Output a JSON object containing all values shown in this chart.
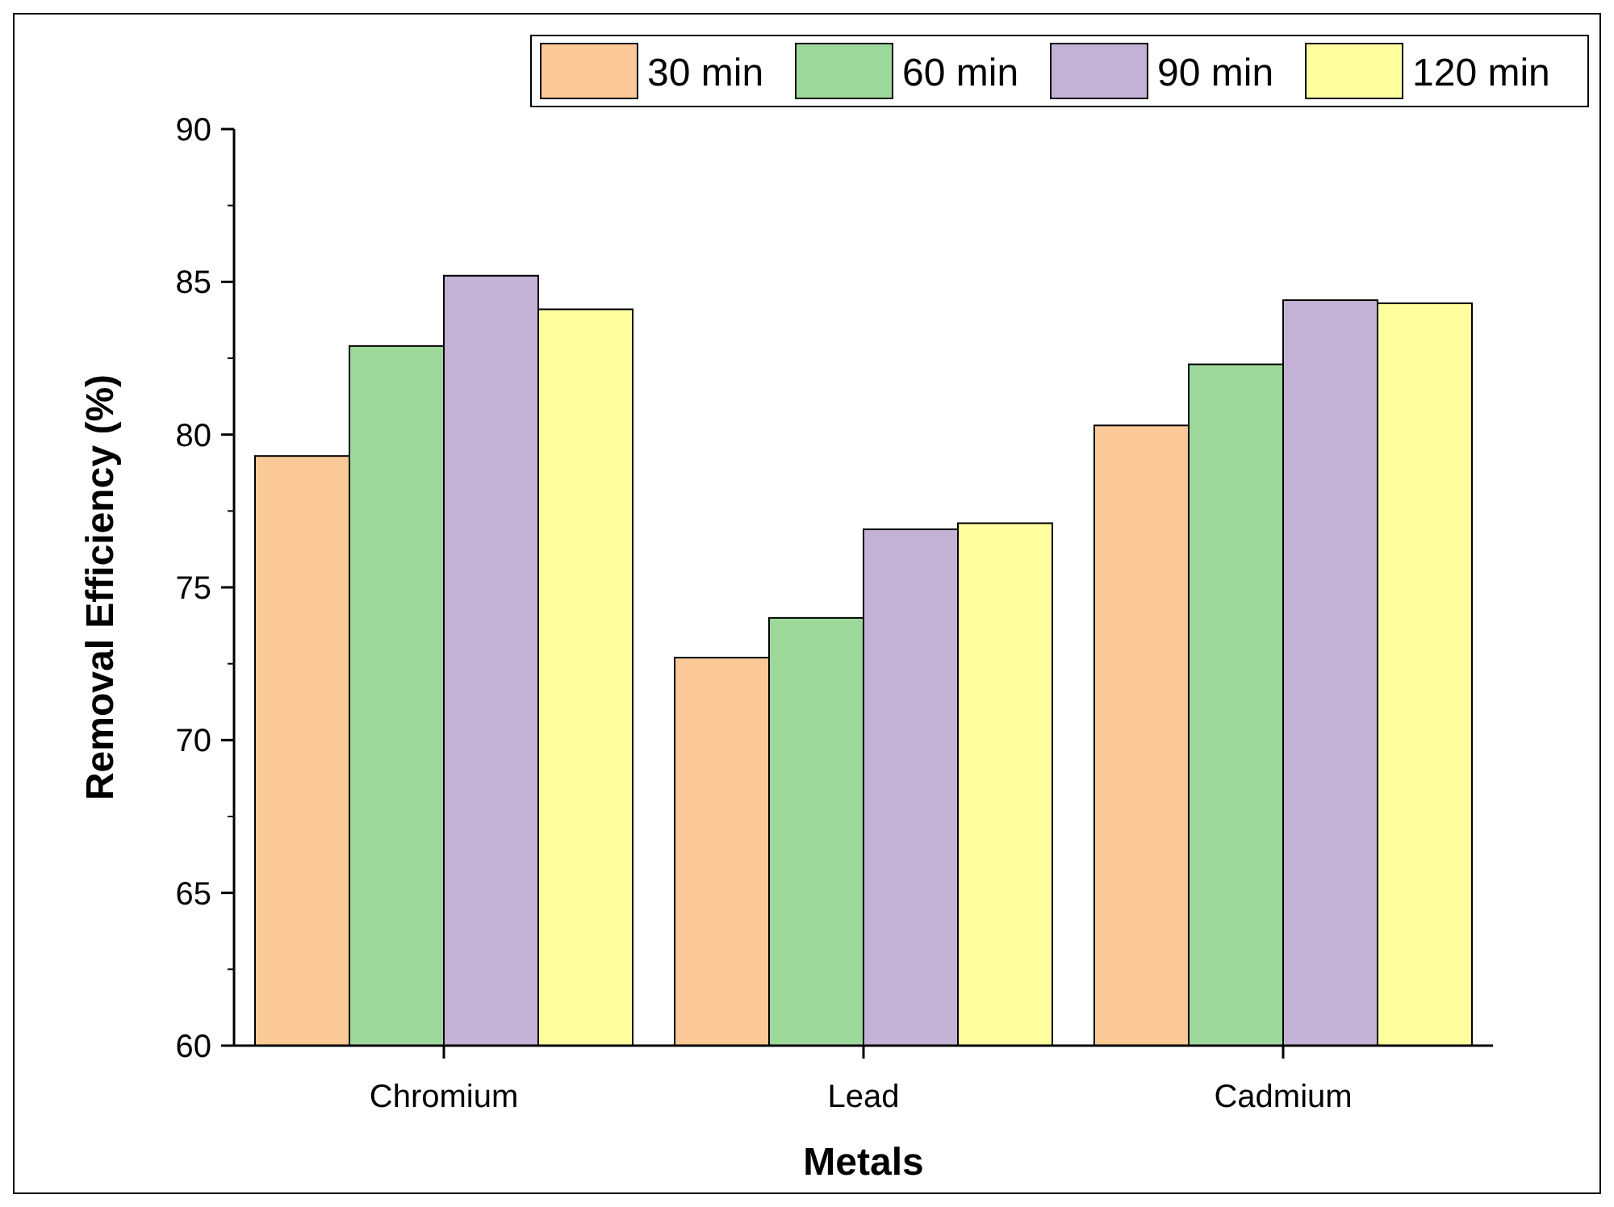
{
  "chart_data": {
    "type": "bar",
    "xlabel": "Metals",
    "ylabel": "Removal Efficiency (%)",
    "categories": [
      "Chromium",
      "Lead",
      "Cadmium"
    ],
    "series": [
      {
        "name": "30 min",
        "color": "#fbc898",
        "values": [
          79.3,
          72.7,
          80.3
        ]
      },
      {
        "name": "60 min",
        "color": "#9dd89b",
        "values": [
          82.9,
          74.0,
          82.3
        ]
      },
      {
        "name": "90 min",
        "color": "#c3b1d6",
        "values": [
          85.2,
          76.9,
          84.4
        ]
      },
      {
        "name": "120 min",
        "color": "#ffff9f",
        "values": [
          84.1,
          77.1,
          84.3
        ]
      }
    ],
    "ylim": [
      60,
      90
    ],
    "yticks": [
      60,
      65,
      70,
      75,
      80,
      85,
      90
    ],
    "grid": false,
    "legend": "top"
  }
}
